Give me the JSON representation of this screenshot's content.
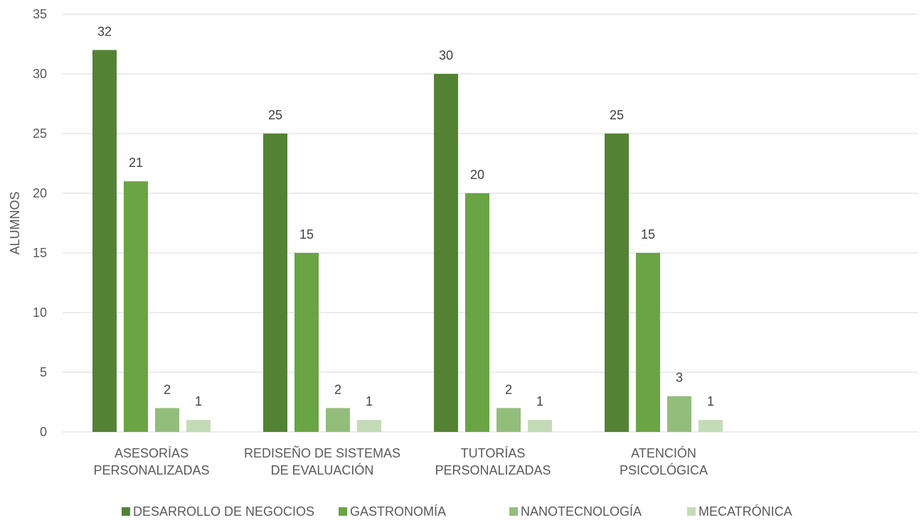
{
  "chart_data": {
    "type": "bar",
    "title": "",
    "ylabel": "ALUMNOS",
    "xlabel": "",
    "ylim": [
      0,
      35
    ],
    "yticks": [
      0,
      5,
      10,
      15,
      20,
      25,
      30,
      35
    ],
    "grid": true,
    "legend_position": "bottom",
    "categories": [
      [
        "ASESORÍAS",
        "PERSONALIZADAS"
      ],
      [
        "REDISEÑO DE SISTEMAS",
        "DE EVALUACIÓN"
      ],
      [
        "TUTORÍAS",
        "PERSONALIZADAS"
      ],
      [
        "ATENCIÓN",
        "PSICOLÓGICA"
      ]
    ],
    "series": [
      {
        "name": "DESARROLLO DE NEGOCIOS",
        "color": "#548235",
        "values": [
          32,
          25,
          30,
          25
        ]
      },
      {
        "name": "GASTRONOMÍA",
        "color": "#6aa444",
        "values": [
          21,
          15,
          20,
          15
        ]
      },
      {
        "name": "NANOTECNOLOGÍA",
        "color": "#93bd7b",
        "values": [
          2,
          2,
          2,
          3
        ]
      },
      {
        "name": "MECATRÓNICA",
        "color": "#c5dbb8",
        "values": [
          1,
          1,
          1,
          1
        ]
      }
    ]
  }
}
